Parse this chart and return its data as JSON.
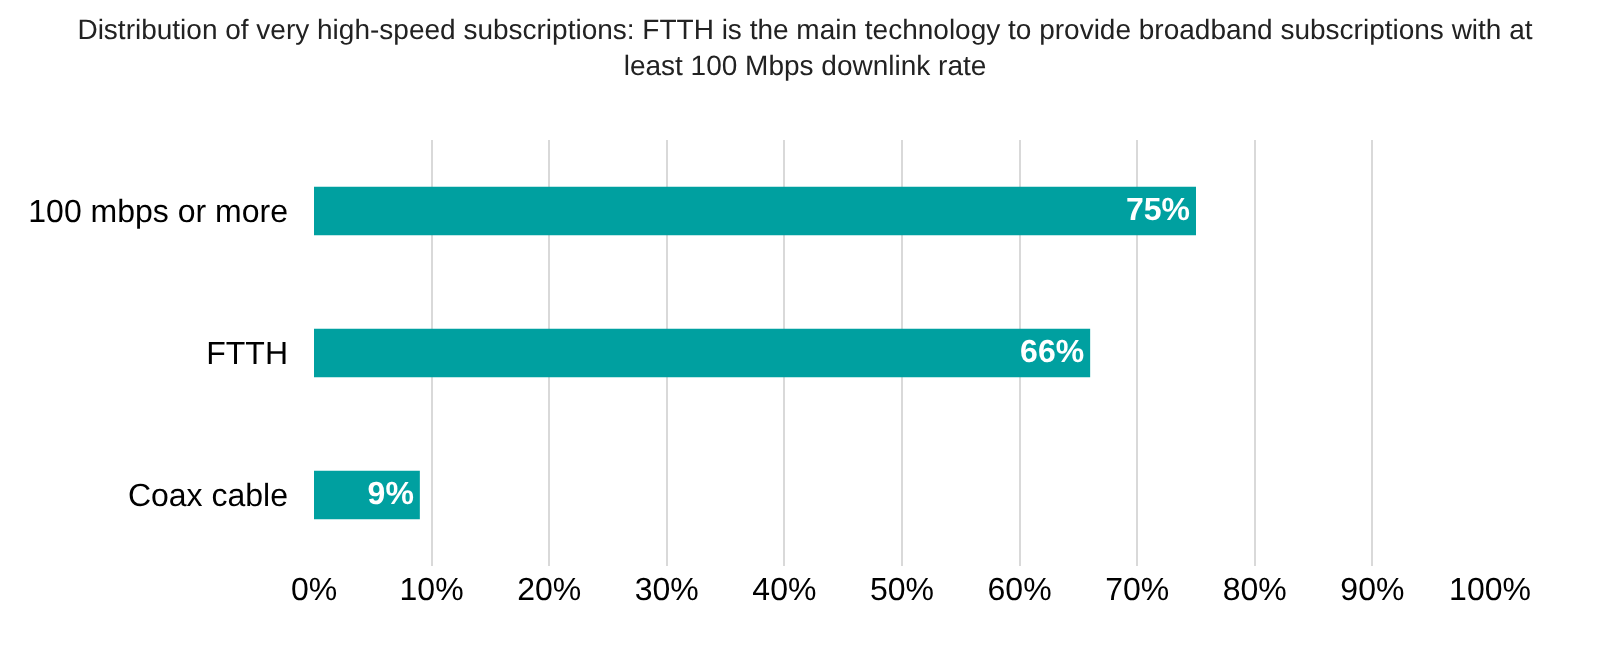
{
  "chart_data": {
    "type": "bar",
    "orientation": "horizontal",
    "title": "Distribution of very high-speed subscriptions: FTTH is the main technology to provide broadband subscriptions with at least 100 Mbps downlink rate",
    "categories": [
      "100 mbps or more",
      "FTTH",
      "Coax cable"
    ],
    "values": [
      75,
      66,
      9
    ],
    "value_labels": [
      "75%",
      "66%",
      "9%"
    ],
    "color": "#00a0a0",
    "xlim": [
      0,
      100
    ],
    "xticks": [
      {
        "value": 0,
        "label": "0%"
      },
      {
        "value": 10,
        "label": "10%"
      },
      {
        "value": 20,
        "label": "20%"
      },
      {
        "value": 30,
        "label": "30%"
      },
      {
        "value": 40,
        "label": "40%"
      },
      {
        "value": 50,
        "label": "50%"
      },
      {
        "value": 60,
        "label": "60%"
      },
      {
        "value": 70,
        "label": "70%"
      },
      {
        "value": 80,
        "label": "80%"
      },
      {
        "value": 90,
        "label": "90%"
      },
      {
        "value": 100,
        "label": "100%"
      }
    ],
    "grid": "x"
  }
}
